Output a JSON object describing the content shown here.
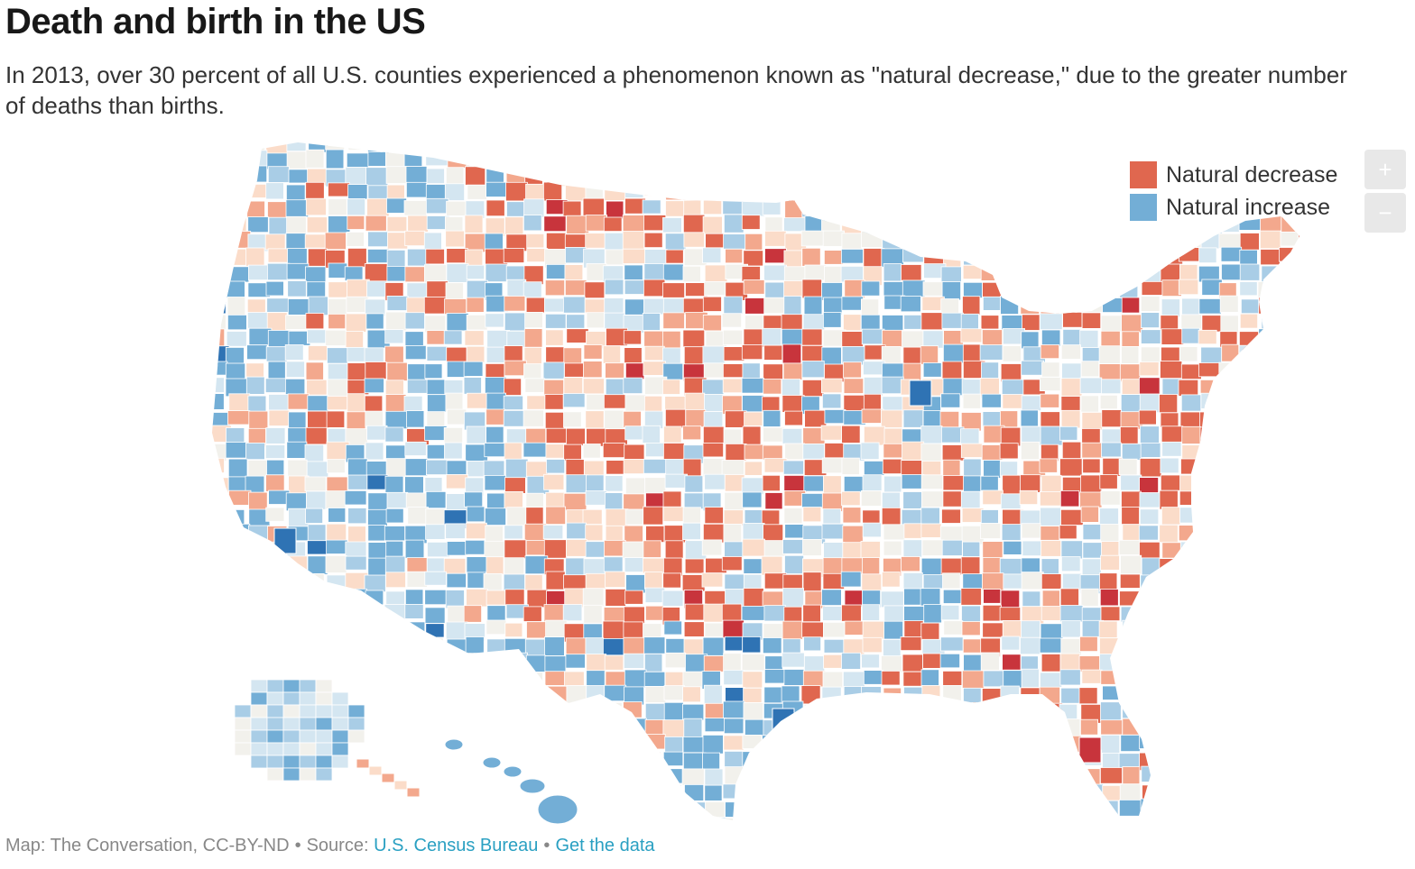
{
  "header": {
    "title": "Death and birth in the US",
    "subtitle": "In 2013, over 30 percent of all U.S. counties experienced a phenomenon known as \"natural decrease,\" due to the greater number of deaths than births."
  },
  "legend": {
    "items": [
      {
        "label": "Natural decrease",
        "color": "#e0674f"
      },
      {
        "label": "Natural increase",
        "color": "#73aed6"
      }
    ]
  },
  "controls": {
    "zoom_in": "+",
    "zoom_out": "−"
  },
  "map": {
    "region": "United States counties",
    "year": "2013",
    "palette": {
      "strong_decrease": "#c8343c",
      "decrease": "#e0674f",
      "mild_decrease": "#f3a88d",
      "slight_decrease": "#fbdcc9",
      "neutral": "#f2f1ec",
      "slight_increase": "#d4e6f1",
      "mild_increase": "#a9cde6",
      "increase": "#73aed6",
      "strong_increase": "#2f73b4",
      "border": "#ffffff"
    }
  },
  "footer": {
    "credit": "Map: The Conversation, CC-BY-ND",
    "source_prefix": "Source:",
    "source_link": "U.S. Census Bureau",
    "data_link": "Get the data",
    "separator": "•"
  }
}
